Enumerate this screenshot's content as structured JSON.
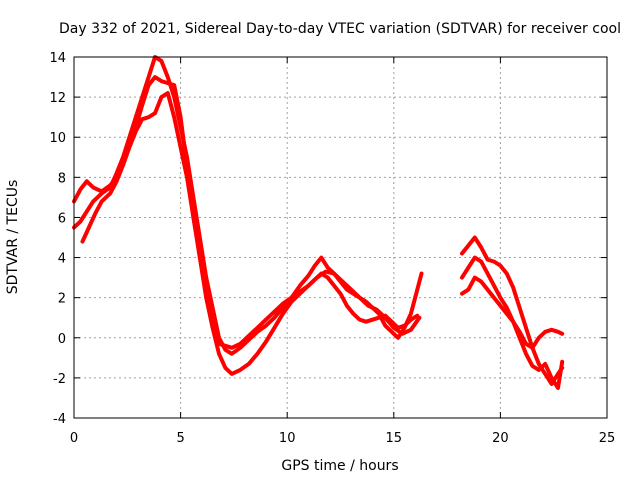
{
  "chart_data": {
    "type": "line",
    "title": "Day 332 of 2021, Sidereal Day-to-day VTEC variation (SDTVAR) for receiver cool",
    "xlabel": "GPS time / hours",
    "ylabel": "SDTVAR / TECUs",
    "xlim": [
      0,
      25
    ],
    "ylim": [
      -4,
      14
    ],
    "xticks": [
      0,
      5,
      10,
      15,
      20,
      25
    ],
    "yticks": [
      -4,
      -2,
      0,
      2,
      4,
      6,
      8,
      10,
      12,
      14
    ],
    "grid": true,
    "color": "#ff0000",
    "series": [
      {
        "name": "trace-1",
        "x": [
          0,
          0.3,
          0.6,
          0.9,
          1.3,
          1.7,
          2.0,
          2.3,
          2.6,
          2.9,
          3.2,
          3.5,
          3.8,
          4.1,
          4.4,
          4.7,
          5.0,
          5.3,
          5.6,
          5.9,
          6.2,
          6.5,
          6.8,
          7.1,
          7.4,
          7.8,
          8.2,
          8.6,
          9.0,
          9.4,
          9.8,
          10.2,
          10.6,
          11.0,
          11.3,
          11.6,
          11.9,
          12.2,
          12.5,
          12.8,
          13.1,
          13.4,
          13.7,
          14.0,
          14.3,
          14.6,
          14.9,
          15.2,
          15.5,
          15.8,
          16.1,
          16.3
        ],
        "y": [
          5.5,
          5.8,
          6.3,
          6.8,
          7.2,
          7.5,
          8.2,
          9.0,
          10.0,
          11.0,
          12.0,
          13.0,
          14.0,
          13.8,
          13.0,
          12.0,
          10.5,
          9.0,
          7.0,
          5.0,
          3.0,
          1.5,
          0.0,
          -0.6,
          -0.8,
          -0.5,
          -0.1,
          0.3,
          0.6,
          1.0,
          1.5,
          2.0,
          2.6,
          3.1,
          3.6,
          4.0,
          3.5,
          3.2,
          2.8,
          2.4,
          2.2,
          2.0,
          1.8,
          1.5,
          1.2,
          0.6,
          0.3,
          0.0,
          0.5,
          1.2,
          2.4,
          3.2
        ]
      },
      {
        "name": "trace-2",
        "x": [
          0,
          0.3,
          0.6,
          0.9,
          1.3,
          1.7,
          2.0,
          2.3,
          2.6,
          2.9,
          3.2,
          3.5,
          3.8,
          4.1,
          4.4,
          4.7,
          5.0,
          5.3,
          5.6,
          5.9,
          6.2,
          6.5,
          6.8,
          7.1,
          7.4,
          7.8,
          8.2,
          8.6,
          9.0,
          9.4,
          9.8,
          10.2,
          10.6,
          11.0,
          11.3,
          11.6,
          11.9,
          12.2,
          12.5,
          12.8,
          13.1,
          13.4,
          13.7,
          14.0,
          14.3,
          14.6,
          14.9,
          15.2,
          15.5,
          15.8,
          16.1
        ],
        "y": [
          6.8,
          7.4,
          7.8,
          7.5,
          7.3,
          7.6,
          8.0,
          8.8,
          9.6,
          10.5,
          11.6,
          12.6,
          13.0,
          12.8,
          12.7,
          12.6,
          11.0,
          8.5,
          6.0,
          4.0,
          2.0,
          0.5,
          -0.8,
          -1.5,
          -1.8,
          -1.6,
          -1.3,
          -0.8,
          -0.2,
          0.5,
          1.2,
          1.8,
          2.2,
          2.6,
          2.9,
          3.2,
          3.0,
          2.6,
          2.2,
          1.6,
          1.2,
          0.9,
          0.8,
          0.9,
          1.0,
          1.1,
          0.8,
          0.5,
          0.6,
          0.9,
          1.1
        ]
      },
      {
        "name": "trace-3",
        "x": [
          0.4,
          0.7,
          1.0,
          1.3,
          1.7,
          2.0,
          2.3,
          2.6,
          2.9,
          3.2,
          3.5,
          3.8,
          4.1,
          4.4,
          4.7,
          5.0,
          5.3,
          5.6,
          5.9,
          6.2,
          6.5,
          6.8,
          7.1,
          7.4,
          7.8,
          8.2,
          8.6,
          9.0,
          9.4,
          9.8,
          10.2,
          10.6,
          11.0,
          11.4,
          11.8,
          12.2,
          12.6,
          13.0,
          13.4,
          13.8,
          14.2,
          14.6,
          15.0,
          15.4,
          15.8,
          16.2
        ],
        "y": [
          4.8,
          5.5,
          6.2,
          6.8,
          7.2,
          7.8,
          8.6,
          9.5,
          10.3,
          10.9,
          11.0,
          11.2,
          12.0,
          12.2,
          11.0,
          9.5,
          8.0,
          6.0,
          4.2,
          2.2,
          0.6,
          -0.3,
          -0.4,
          -0.5,
          -0.3,
          0.1,
          0.5,
          0.9,
          1.3,
          1.7,
          2.0,
          2.3,
          2.6,
          3.0,
          3.3,
          3.2,
          2.8,
          2.4,
          2.0,
          1.6,
          1.4,
          1.0,
          0.5,
          0.2,
          0.4,
          1.0
        ]
      },
      {
        "name": "trace-4",
        "x": [
          18.2,
          18.5,
          18.8,
          19.1,
          19.4,
          19.7,
          20.0,
          20.3,
          20.6,
          20.9,
          21.2,
          21.5,
          21.8,
          22.1,
          22.4,
          22.7,
          22.9
        ],
        "y": [
          4.2,
          4.6,
          5.0,
          4.5,
          3.9,
          3.8,
          3.6,
          3.2,
          2.5,
          1.5,
          0.5,
          -0.5,
          -1.3,
          -1.8,
          -2.3,
          -1.8,
          -1.5
        ]
      },
      {
        "name": "trace-5",
        "x": [
          18.2,
          18.5,
          18.8,
          19.1,
          19.4,
          19.7,
          20.0,
          20.3,
          20.6,
          20.9,
          21.2,
          21.5,
          21.8,
          22.1,
          22.4,
          22.7,
          22.9
        ],
        "y": [
          3.0,
          3.5,
          4.0,
          3.8,
          3.2,
          2.6,
          2.0,
          1.5,
          0.8,
          0.0,
          -0.8,
          -1.4,
          -1.6,
          -1.3,
          -2.0,
          -2.5,
          -1.2
        ]
      },
      {
        "name": "trace-6",
        "x": [
          18.2,
          18.5,
          18.8,
          19.1,
          19.4,
          19.7,
          20.0,
          20.3,
          20.6,
          20.9,
          21.2,
          21.5,
          21.8,
          22.1,
          22.4,
          22.7,
          22.9
        ],
        "y": [
          2.2,
          2.4,
          3.0,
          2.8,
          2.4,
          2.0,
          1.6,
          1.2,
          0.8,
          0.3,
          -0.3,
          -0.5,
          0.0,
          0.3,
          0.4,
          0.3,
          0.2
        ]
      }
    ]
  }
}
